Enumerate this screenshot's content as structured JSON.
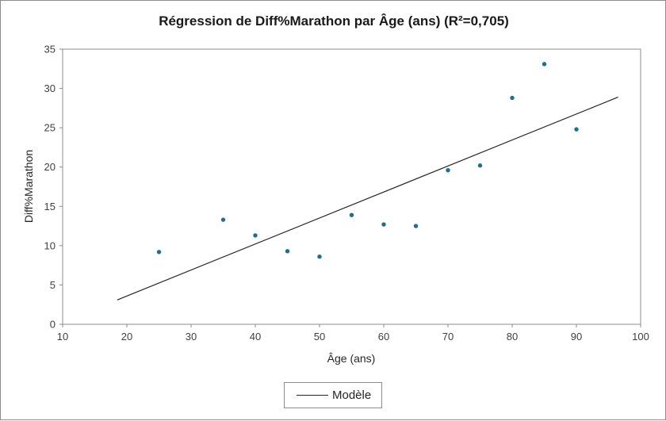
{
  "chart_data": {
    "type": "scatter",
    "title": "Régression de Diff%Marathon par Âge (ans) (R²=0,705)",
    "xlabel": "Âge (ans)",
    "ylabel": "Diff%Marathon",
    "xlim": [
      10,
      100
    ],
    "ylim": [
      0,
      35
    ],
    "xticks": [
      "10",
      "20",
      "30",
      "40",
      "50",
      "60",
      "70",
      "80",
      "90",
      "100"
    ],
    "yticks": [
      "0",
      "5",
      "10",
      "15",
      "20",
      "25",
      "30",
      "35"
    ],
    "grid": false,
    "legend": "bottom",
    "point_color": "#1f6e8f",
    "line_color": "#262626",
    "points": [
      {
        "x": 25,
        "y": 9.2
      },
      {
        "x": 35,
        "y": 13.3
      },
      {
        "x": 40,
        "y": 11.3
      },
      {
        "x": 45,
        "y": 9.3
      },
      {
        "x": 50,
        "y": 8.6
      },
      {
        "x": 55,
        "y": 13.9
      },
      {
        "x": 60,
        "y": 12.7
      },
      {
        "x": 65,
        "y": 12.5
      },
      {
        "x": 70,
        "y": 19.6
      },
      {
        "x": 75,
        "y": 20.2
      },
      {
        "x": 80,
        "y": 28.8
      },
      {
        "x": 85,
        "y": 33.1
      },
      {
        "x": 90,
        "y": 24.8
      }
    ],
    "regression_line": {
      "name": "Modèle",
      "x": [
        18.5,
        96.5
      ],
      "y": [
        3.1,
        28.9
      ]
    }
  }
}
